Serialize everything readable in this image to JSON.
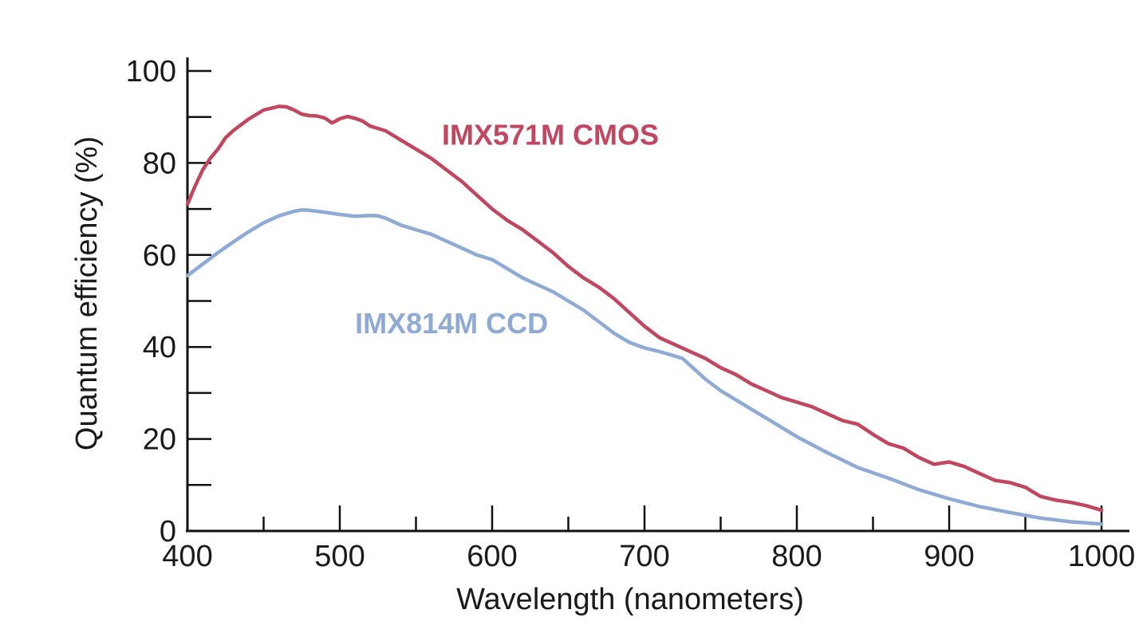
{
  "chart_data": {
    "type": "line",
    "title": "",
    "xlabel": "Wavelength (nanometers)",
    "ylabel": "Quantum efficiency (%)",
    "xlim": [
      400,
      1000
    ],
    "ylim": [
      0,
      100
    ],
    "x_ticks": [
      400,
      500,
      600,
      700,
      800,
      900,
      1000
    ],
    "x_tick_labels": [
      "400",
      "500",
      "600",
      "700",
      "800",
      "900",
      "1000"
    ],
    "x_minor_ticks": [
      450,
      550,
      650,
      750,
      850,
      950
    ],
    "y_ticks": [
      0,
      20,
      40,
      60,
      80,
      100
    ],
    "y_tick_labels": [
      "0",
      "20",
      "40",
      "60",
      "80",
      "100"
    ],
    "y_minor_ticks": [
      10,
      30,
      50,
      70,
      90
    ],
    "grid": false,
    "legend": "inline labels near curves",
    "series": [
      {
        "name": "IMX571M CMOS",
        "color": "#c0475f",
        "label_position": [
          567,
          84
        ],
        "x": [
          400,
          405,
          410,
          415,
          420,
          425,
          430,
          440,
          450,
          460,
          465,
          470,
          475,
          480,
          485,
          490,
          495,
          500,
          505,
          510,
          515,
          520,
          525,
          530,
          540,
          550,
          560,
          570,
          580,
          590,
          600,
          610,
          620,
          630,
          640,
          650,
          660,
          670,
          680,
          690,
          700,
          710,
          720,
          730,
          740,
          750,
          760,
          770,
          780,
          790,
          800,
          810,
          820,
          830,
          840,
          850,
          860,
          870,
          880,
          890,
          900,
          905,
          910,
          920,
          930,
          940,
          950,
          960,
          970,
          980,
          990,
          1000
        ],
        "y": [
          71,
          75,
          78.5,
          81,
          83,
          85.5,
          87,
          89.5,
          91.5,
          92.3,
          92.2,
          91.5,
          90.6,
          90.3,
          90.2,
          89.8,
          88.7,
          89.6,
          90.1,
          89.7,
          89.1,
          88,
          87.5,
          87,
          85,
          83,
          81,
          78.5,
          76,
          73,
          70,
          67.5,
          65.5,
          63,
          60.5,
          57.5,
          55,
          53,
          50.5,
          47.5,
          44.5,
          42,
          40.5,
          39,
          37.5,
          35.5,
          34,
          32,
          30.5,
          29,
          28,
          27,
          25.5,
          24,
          23.2,
          21,
          19,
          18,
          16,
          14.5,
          15,
          14.5,
          14,
          12.5,
          11,
          10.5,
          9.5,
          7.5,
          6.7,
          6.2,
          5.5,
          4.5
        ]
      },
      {
        "name": "IMX814M CCD",
        "color": "#8faad5",
        "label_position": [
          510,
          43
        ],
        "x": [
          400,
          410,
          420,
          430,
          440,
          450,
          460,
          470,
          475,
          480,
          490,
          500,
          510,
          520,
          525,
          530,
          540,
          550,
          560,
          570,
          580,
          590,
          600,
          610,
          620,
          630,
          640,
          650,
          660,
          670,
          680,
          690,
          700,
          710,
          720,
          725,
          730,
          740,
          750,
          760,
          780,
          800,
          820,
          840,
          860,
          880,
          900,
          920,
          940,
          960,
          980,
          1000
        ],
        "y": [
          55.5,
          58,
          60.5,
          62.8,
          65,
          67,
          68.5,
          69.5,
          69.8,
          69.7,
          69.3,
          68.8,
          68.4,
          68.6,
          68.5,
          68,
          66.5,
          65.5,
          64.5,
          63,
          61.5,
          60,
          59,
          57,
          55,
          53.5,
          52,
          50,
          48,
          45.5,
          43,
          41,
          39.8,
          39,
          38,
          37.5,
          36,
          33,
          30.5,
          28.5,
          24.5,
          20.5,
          17,
          13.8,
          11.5,
          9,
          7,
          5.3,
          4,
          2.8,
          2,
          1.5
        ]
      }
    ]
  }
}
